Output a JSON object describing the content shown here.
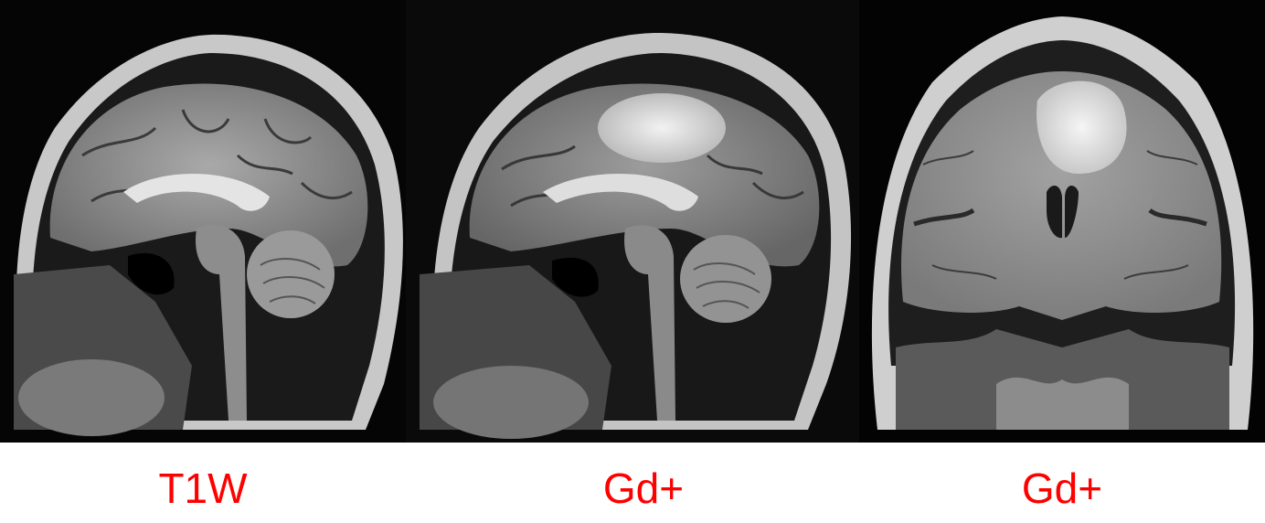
{
  "panels": [
    {
      "caption": "T1W",
      "view": "sagittal"
    },
    {
      "caption": "Gd+",
      "view": "sagittal"
    },
    {
      "caption": "Gd+",
      "view": "coronal"
    }
  ],
  "colors": {
    "caption": "#ff0000",
    "background": "#ffffff",
    "scan_background": "#000000"
  }
}
